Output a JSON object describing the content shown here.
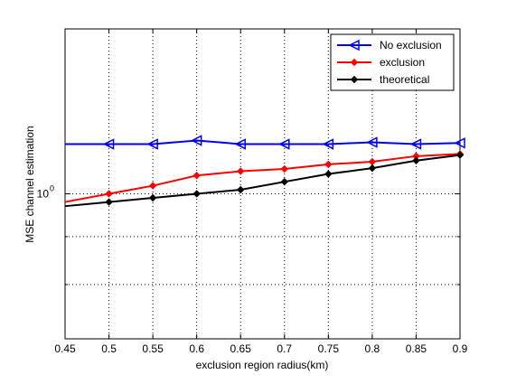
{
  "chart_data": {
    "type": "line",
    "title": "",
    "xlabel": "exclusion region radius(km)",
    "ylabel": "MSE channel estimation",
    "xlim": [
      0.45,
      0.9
    ],
    "ylim": [
      0.7,
      1.5
    ],
    "y_scale": "log",
    "grid": true,
    "grid_style": "dotted",
    "legend_position": "top-right",
    "x_ticks": [
      "0.45",
      "0.5",
      "0.55",
      "0.6",
      "0.65",
      "0.7",
      "0.75",
      "0.8",
      "0.85",
      "0.9"
    ],
    "y_tick_label": {
      "base": "10",
      "exp": "0"
    },
    "x": [
      0.45,
      0.5,
      0.55,
      0.6,
      0.65,
      0.7,
      0.75,
      0.8,
      0.85,
      0.9
    ],
    "series": [
      {
        "name": "No exclusion",
        "color": "#0000ff",
        "marker": "triangle-left",
        "values": [
          1.13,
          1.13,
          1.13,
          1.14,
          1.13,
          1.13,
          1.13,
          1.135,
          1.13,
          1.133
        ]
      },
      {
        "name": "exclusion",
        "color": "#ff0000",
        "marker": "diamond",
        "values": [
          0.98,
          1.0,
          1.02,
          1.046,
          1.057,
          1.063,
          1.075,
          1.082,
          1.097,
          1.103
        ]
      },
      {
        "name": "theoretical",
        "color": "#000000",
        "marker": "diamond",
        "values": [
          0.97,
          0.98,
          0.99,
          1.0,
          1.01,
          1.03,
          1.05,
          1.065,
          1.085,
          1.1
        ]
      }
    ]
  }
}
